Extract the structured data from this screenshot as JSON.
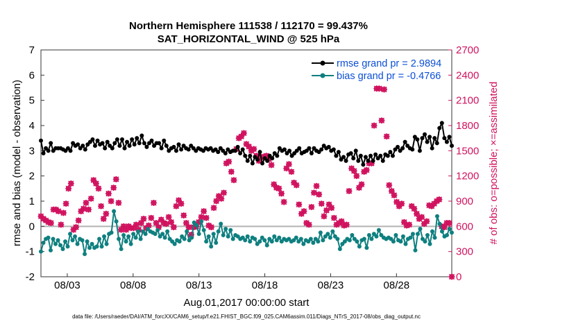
{
  "chart_data": {
    "type": "line",
    "title": "Northern Hemisphere 111538 / 112170 = 99.437%",
    "subtitle": "SAT_HORIZONTAL_WIND @ 525 hPa",
    "xlabel": "Aug.01,2017 00:00:00 start",
    "ylabel_left": "rmse and bias (model - observation)",
    "ylabel_right": "# of obs: o=possible; ×=assimilated",
    "footer": "data file: /Users/raeder/DAI/ATM_forcXX/CAM6_setup/f.e21.FHIST_BGC.f09_025.CAM6assim.011/Diags_NTrS_2017-08/obs_diag_output.nc",
    "x_range_days": [
      1.0,
      32.2
    ],
    "x_ticks": [
      3,
      8,
      13,
      18,
      23,
      28
    ],
    "x_tick_labels": [
      "08/03",
      "08/08",
      "08/13",
      "08/18",
      "08/23",
      "08/28"
    ],
    "ylim_left": [
      -2,
      7
    ],
    "y_ticks_left": [
      -2,
      -1,
      0,
      1,
      2,
      3,
      4,
      5,
      6,
      7
    ],
    "ylim_right": [
      0,
      2700
    ],
    "y_ticks_right": [
      0,
      300,
      600,
      900,
      1200,
      1500,
      1800,
      2100,
      2400,
      2700
    ],
    "zero_line": 0,
    "series": [
      {
        "name": "rmse grand pr = 2.9894",
        "color": "#000000",
        "marker": "filled-circle",
        "axis": "left",
        "values": [
          3.4,
          2.9,
          3.1,
          3.0,
          3.3,
          3.0,
          3.1,
          3.1,
          3.1,
          3.05,
          3.0,
          3.1,
          3.0,
          3.3,
          3.2,
          3.25,
          3.1,
          3.2,
          3.05,
          3.25,
          3.35,
          3.45,
          3.2,
          3.4,
          3.25,
          3.3,
          3.1,
          3.35,
          3.2,
          3.1,
          3.3,
          3.45,
          3.2,
          3.45,
          3.1,
          3.35,
          3.2,
          3.45,
          3.25,
          3.5,
          3.3,
          3.6,
          3.3,
          3.15,
          3.3,
          3.4,
          3.2,
          3.3,
          3.3,
          3.1,
          3.4,
          3.2,
          3.0,
          3.1,
          3.15,
          3.0,
          3.25,
          3.05,
          3.2,
          3.1,
          3.05,
          3.2,
          3.1,
          3.0,
          3.1,
          3.05,
          3.0,
          3.1,
          3.05,
          3.1,
          3.0,
          3.05,
          2.95,
          3.1,
          3.0,
          2.9,
          3.05,
          2.95,
          3.0,
          3.0,
          3.15,
          2.9,
          3.05,
          2.8,
          2.6,
          2.8,
          2.5,
          2.75,
          2.65,
          2.95,
          2.5,
          2.7,
          2.6,
          2.8,
          2.7,
          2.9,
          2.8,
          3.1,
          3.0,
          3.05,
          2.9,
          3.0,
          2.8,
          2.9,
          3.0,
          3.1,
          2.9,
          2.95,
          3.0,
          3.1,
          2.9,
          3.1,
          3.0,
          2.95,
          3.05,
          3.2,
          3.1,
          3.15,
          3.0,
          3.05,
          2.8,
          2.95,
          2.65,
          2.75,
          2.6,
          2.85,
          2.9,
          2.7,
          3.0,
          2.6,
          2.8,
          2.45,
          2.75,
          2.6,
          2.8,
          2.6,
          2.85,
          2.7,
          2.8,
          2.6,
          2.85,
          2.8,
          2.95,
          2.8,
          3.05,
          3.15,
          3.0,
          3.1,
          3.35,
          3.2,
          3.1,
          3.05,
          3.55,
          3.45,
          3.0,
          3.5,
          3.65,
          3.35,
          3.55,
          3.1,
          3.5,
          3.3,
          3.9,
          4.1,
          3.5,
          3.35,
          3.55,
          3.2
        ]
      },
      {
        "name": "bias grand pr = -0.4766",
        "color": "#0f7f7f",
        "marker": "filled-circle",
        "axis": "left",
        "values": [
          -1.0,
          -0.65,
          -0.5,
          -0.45,
          -0.95,
          -0.5,
          -0.7,
          -0.55,
          -0.75,
          -0.9,
          -0.6,
          -0.8,
          -0.3,
          -0.55,
          -0.4,
          -0.7,
          -0.5,
          -0.55,
          -1.1,
          -0.6,
          -0.85,
          -0.7,
          -0.85,
          -0.8,
          -0.5,
          -0.8,
          -0.4,
          -0.7,
          -0.3,
          -0.25,
          0.6,
          0.2,
          -0.5,
          -0.9,
          -0.35,
          -0.6,
          -0.4,
          -0.7,
          -0.3,
          -0.45,
          -0.2,
          -0.5,
          -0.2,
          -0.3,
          -0.1,
          -0.2,
          -0.25,
          -0.3,
          -0.15,
          -0.4,
          -0.3,
          -0.45,
          -0.2,
          -0.5,
          -0.6,
          -0.7,
          -0.55,
          -0.6,
          -0.4,
          -0.5,
          -0.2,
          -0.55,
          -0.45,
          0.15,
          0.05,
          -0.3,
          0.2,
          -0.15,
          -0.6,
          -0.4,
          -0.8,
          -0.3,
          -0.65,
          -0.2,
          0.1,
          -0.35,
          -0.1,
          -0.4,
          -0.15,
          -0.5,
          -0.35,
          -0.4,
          -0.5,
          -0.45,
          -0.55,
          -0.4,
          -0.6,
          -0.45,
          -0.5,
          -0.7,
          -0.6,
          -0.45,
          -0.55,
          -0.75,
          -0.5,
          -0.6,
          -0.4,
          -0.55,
          -0.45,
          -0.6,
          -0.5,
          -0.55,
          -0.5,
          -0.6,
          -0.55,
          -0.45,
          -0.6,
          -0.5,
          -0.7,
          -0.55,
          -0.6,
          -0.5,
          -0.65,
          -0.5,
          -0.6,
          -0.25,
          -0.55,
          -0.4,
          -0.3,
          -0.45,
          -0.2,
          -0.4,
          -0.5,
          -0.9,
          -0.7,
          -0.6,
          -0.5,
          -0.55,
          -0.35,
          -0.5,
          -0.6,
          -0.8,
          -0.55,
          -0.5,
          -0.85,
          -0.35,
          -0.5,
          -0.3,
          -0.4,
          -0.15,
          -0.35,
          -0.45,
          -0.5,
          -0.45,
          -0.5,
          -0.6,
          -0.35,
          -0.55,
          -0.6,
          -0.4,
          -0.7,
          -0.5,
          -0.45,
          -0.3,
          -0.95,
          -0.3,
          -0.1,
          -0.5,
          -0.6,
          -0.35,
          -0.7,
          -0.2,
          -0.45,
          0.4,
          0.1,
          -0.2,
          -0.4,
          -0.35,
          -0.1,
          -0.25
        ]
      },
      {
        "name": "# of obs possible",
        "color": "#d0115e",
        "marker": "circle",
        "axis": "right",
        "values": [
          720,
          690,
          670,
          650,
          640,
          800,
          800,
          780,
          620,
          760,
          870,
          1050,
          1110,
          560,
          590,
          670,
          780,
          810,
          880,
          800,
          930,
          1150,
          1110,
          1050,
          840,
          690,
          750,
          990,
          900,
          1060,
          1160,
          880,
          560,
          600,
          560,
          600,
          580,
          580,
          620,
          560,
          640,
          690,
          580,
          610,
          700,
          880,
          640,
          590,
          680,
          640,
          630,
          710,
          650,
          590,
          840,
          910,
          870,
          730,
          640,
          590,
          500,
          590,
          600,
          650,
          710,
          780,
          700,
          610,
          590,
          820,
          900,
          960,
          930,
          1000,
          1350,
          1370,
          1250,
          1150,
          1520,
          1650,
          1670,
          1710,
          1580,
          1550,
          1500,
          1520,
          1440,
          1380,
          1420,
          1430,
          1440,
          1400,
          1330,
          1100,
          1060,
          1050,
          990,
          890,
          1290,
          1340,
          1250,
          1120,
          1090,
          860,
          750,
          780,
          640,
          620,
          830,
          1000,
          1080,
          980,
          870,
          720,
          790,
          860,
          820,
          700,
          620,
          640,
          660,
          610,
          620,
          1020,
          1290,
          1260,
          1200,
          1060,
          1100,
          1250,
          1270,
          1350,
          1350,
          1800,
          2240,
          2240,
          1860,
          2230,
          1670,
          1090,
          1020,
          970,
          890,
          840,
          870,
          650,
          610,
          620,
          840,
          810,
          750,
          690,
          710,
          630,
          660,
          850,
          840,
          870,
          900,
          920,
          600,
          590,
          640,
          640,
          0
        ]
      },
      {
        "name": "# of obs assimilated",
        "color": "#d0115e",
        "marker": "x",
        "axis": "right",
        "values": [
          720,
          690,
          670,
          650,
          640,
          800,
          800,
          780,
          620,
          760,
          870,
          1050,
          1110,
          560,
          590,
          670,
          780,
          810,
          880,
          800,
          930,
          1150,
          1110,
          1050,
          840,
          690,
          750,
          990,
          900,
          1060,
          1160,
          880,
          560,
          600,
          560,
          600,
          580,
          580,
          620,
          560,
          640,
          690,
          580,
          610,
          700,
          880,
          640,
          590,
          680,
          640,
          630,
          710,
          650,
          590,
          840,
          910,
          870,
          730,
          640,
          590,
          500,
          590,
          600,
          650,
          710,
          780,
          700,
          610,
          590,
          820,
          900,
          960,
          930,
          1000,
          1350,
          1370,
          1250,
          1150,
          1520,
          1650,
          1670,
          1710,
          1580,
          1550,
          1500,
          1520,
          1440,
          1380,
          1420,
          1430,
          1440,
          1400,
          1330,
          1100,
          1060,
          1050,
          990,
          890,
          1290,
          1340,
          1250,
          1120,
          1090,
          860,
          750,
          780,
          640,
          620,
          830,
          1000,
          1080,
          980,
          870,
          720,
          790,
          860,
          820,
          700,
          620,
          640,
          660,
          610,
          620,
          1020,
          1290,
          1260,
          1200,
          1060,
          1100,
          1250,
          1270,
          1350,
          1350,
          1800,
          2240,
          2240,
          1860,
          2230,
          1670,
          1090,
          1020,
          970,
          890,
          840,
          870,
          650,
          610,
          620,
          840,
          810,
          750,
          690,
          710,
          630,
          660,
          850,
          840,
          870,
          900,
          920,
          600,
          590,
          640,
          640,
          0
        ]
      }
    ],
    "x_series_days": [
      1.0,
      1.25,
      1.5,
      1.75,
      2.0,
      2.25,
      2.5,
      2.75,
      3.0,
      3.25,
      3.5,
      3.75,
      4.0,
      4.25,
      4.5,
      4.75,
      5.0,
      5.25,
      5.5,
      5.75,
      6.0,
      6.25,
      6.5,
      6.75,
      7.0,
      7.25,
      7.5,
      7.75,
      8.0,
      8.25,
      8.5,
      8.75,
      9.0,
      9.25,
      9.5,
      9.75,
      10.0,
      10.25,
      10.5,
      10.75,
      11.0,
      11.25,
      11.5,
      11.75,
      12.0,
      12.25,
      12.5,
      12.75,
      13.0,
      13.25,
      13.5,
      13.75,
      14.0,
      14.25,
      14.5,
      14.75,
      15.0,
      15.25,
      15.5,
      15.75,
      16.0,
      16.25,
      16.5,
      16.75,
      17.0,
      17.25,
      17.5,
      17.75,
      18.0,
      18.25,
      18.5,
      18.75,
      19.0,
      19.25,
      19.5,
      19.75,
      20.0,
      20.25,
      20.5,
      20.75,
      21.0,
      21.25,
      21.5,
      21.75,
      22.0,
      22.25,
      22.5,
      22.75,
      23.0,
      23.25,
      23.5,
      23.75,
      24.0,
      24.25,
      24.5,
      24.75,
      25.0,
      25.25,
      25.5,
      25.75,
      26.0,
      26.25,
      26.5,
      26.75,
      27.0,
      27.25,
      27.5,
      27.75,
      28.0,
      28.25,
      28.5,
      28.75,
      29.0,
      29.25,
      29.5,
      29.75,
      30.0,
      30.25,
      30.5,
      30.75,
      31.0,
      31.25,
      31.5,
      31.75,
      32.0,
      32.2,
      1.0,
      1.25,
      1.5,
      1.75,
      2.0,
      2.25,
      2.5,
      2.75,
      3.0,
      3.25,
      3.5,
      3.75,
      4.0,
      4.25,
      4.5,
      4.75,
      5.0,
      5.25,
      5.5,
      5.75,
      6.0,
      6.25,
      6.5,
      6.75,
      7.0,
      7.25,
      7.5,
      7.75,
      8.0,
      8.25,
      8.5,
      8.75,
      9.0,
      9.25,
      9.5,
      9.75,
      10.0
    ]
  }
}
